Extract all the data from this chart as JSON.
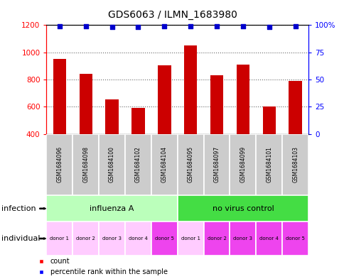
{
  "title": "GDS6063 / ILMN_1683980",
  "samples": [
    "GSM1684096",
    "GSM1684098",
    "GSM1684100",
    "GSM1684102",
    "GSM1684104",
    "GSM1684095",
    "GSM1684097",
    "GSM1684099",
    "GSM1684101",
    "GSM1684103"
  ],
  "counts": [
    950,
    840,
    655,
    590,
    905,
    1050,
    830,
    910,
    600,
    790
  ],
  "percentiles": [
    99,
    99,
    98,
    98,
    99,
    99,
    99,
    99,
    98,
    99
  ],
  "ylim_left": [
    400,
    1200
  ],
  "ylim_right": [
    0,
    100
  ],
  "yticks_left": [
    400,
    600,
    800,
    1000,
    1200
  ],
  "yticks_right": [
    0,
    25,
    50,
    75,
    100
  ],
  "infection_groups": [
    {
      "label": "influenza A",
      "start": 0,
      "end": 5,
      "color": "#bbffbb"
    },
    {
      "label": "no virus control",
      "start": 5,
      "end": 10,
      "color": "#44dd44"
    }
  ],
  "donors": [
    "donor 1",
    "donor 2",
    "donor 3",
    "donor 4",
    "donor 5",
    "donor 1",
    "donor 2",
    "donor 3",
    "donor 4",
    "donor 5"
  ],
  "influenza_donor_colors": [
    "#ffccff",
    "#ffccff",
    "#ffccff",
    "#ffccff",
    "#ee44ee"
  ],
  "novirus_donor_colors": [
    "#ffccff",
    "#ee44ee",
    "#ee44ee",
    "#ee44ee",
    "#ee44ee"
  ],
  "bar_color": "#cc0000",
  "percentile_color": "#0000cc",
  "sample_bg_color": "#cccccc",
  "bar_width": 0.5
}
